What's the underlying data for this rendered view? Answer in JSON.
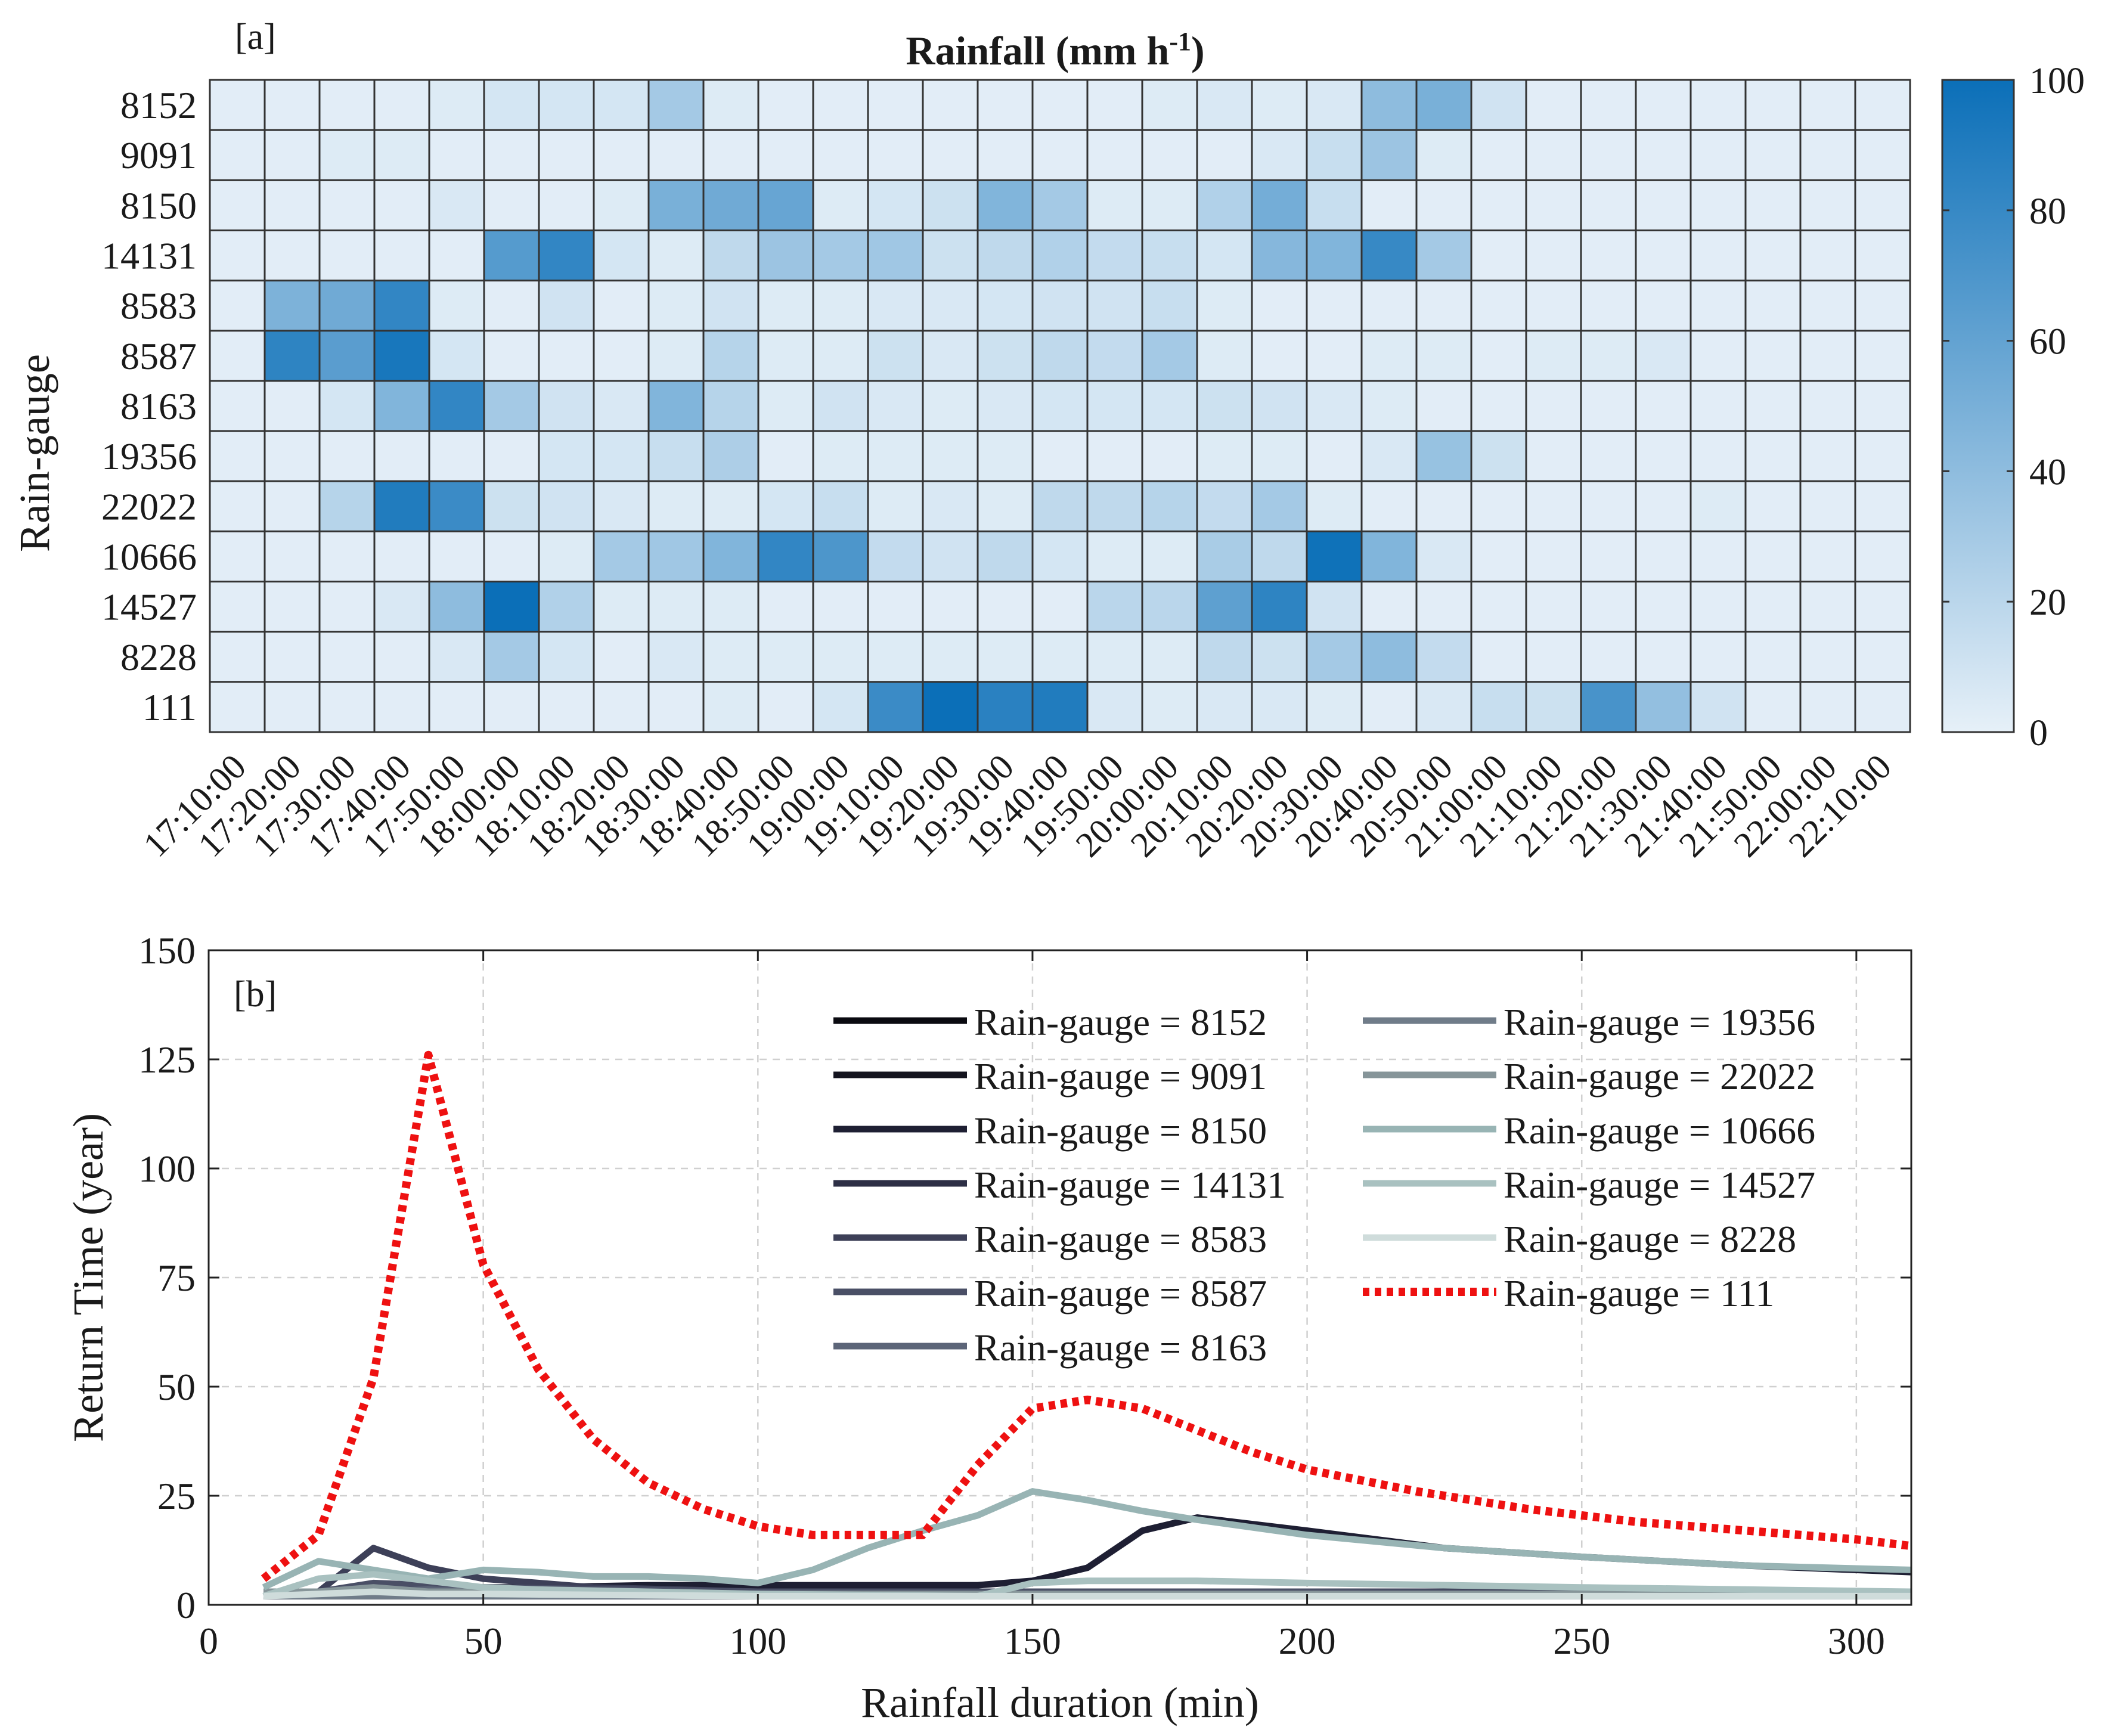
{
  "chart_data": [
    {
      "type": "heatmap",
      "panel_label": "[a]",
      "title": "Rainfall (mm h",
      "title_sup": "-1",
      "title_close": ")",
      "ylabel": "Rain-gauge",
      "rows": [
        "8152",
        "9091",
        "8150",
        "14131",
        "8583",
        "8587",
        "8163",
        "19356",
        "22022",
        "10666",
        "14527",
        "8228",
        "111"
      ],
      "columns": [
        "17:10:00",
        "17:20:00",
        "17:30:00",
        "17:40:00",
        "17:50:00",
        "18:00:00",
        "18:10:00",
        "18:20:00",
        "18:30:00",
        "18:40:00",
        "18:50:00",
        "19:00:00",
        "19:10:00",
        "19:20:00",
        "19:30:00",
        "19:40:00",
        "19:50:00",
        "20:00:00",
        "20:10:00",
        "20:20:00",
        "20:30:00",
        "20:40:00",
        "20:50:00",
        "21:00:00",
        "21:10:00",
        "21:20:00",
        "21:30:00",
        "21:40:00",
        "21:50:00",
        "22:00:00",
        "22:10:00"
      ],
      "values": [
        [
          2,
          2,
          2,
          2,
          4,
          8,
          8,
          8,
          30,
          4,
          2,
          2,
          2,
          2,
          2,
          2,
          2,
          4,
          6,
          4,
          6,
          40,
          50,
          10,
          2,
          2,
          2,
          2,
          2,
          2,
          2
        ],
        [
          2,
          2,
          4,
          4,
          2,
          2,
          2,
          2,
          2,
          2,
          2,
          2,
          2,
          2,
          2,
          2,
          2,
          2,
          2,
          6,
          14,
          34,
          4,
          2,
          2,
          2,
          2,
          2,
          2,
          2,
          2
        ],
        [
          2,
          2,
          2,
          2,
          6,
          2,
          2,
          4,
          50,
          54,
          58,
          4,
          8,
          12,
          46,
          30,
          4,
          4,
          24,
          52,
          14,
          2,
          2,
          2,
          2,
          2,
          2,
          2,
          2,
          2,
          2
        ],
        [
          2,
          2,
          2,
          2,
          2,
          66,
          82,
          8,
          4,
          18,
          34,
          30,
          32,
          12,
          18,
          24,
          16,
          14,
          8,
          44,
          46,
          80,
          30,
          2,
          2,
          2,
          2,
          2,
          2,
          2,
          2
        ],
        [
          2,
          48,
          54,
          82,
          4,
          2,
          10,
          2,
          4,
          10,
          4,
          4,
          6,
          6,
          8,
          10,
          10,
          14,
          4,
          2,
          2,
          2,
          2,
          2,
          2,
          2,
          2,
          2,
          2,
          2,
          2
        ],
        [
          2,
          84,
          64,
          94,
          8,
          2,
          2,
          2,
          4,
          22,
          4,
          4,
          12,
          6,
          12,
          18,
          16,
          30,
          4,
          2,
          2,
          4,
          4,
          2,
          4,
          4,
          6,
          2,
          2,
          2,
          2
        ],
        [
          2,
          2,
          8,
          46,
          82,
          30,
          10,
          6,
          46,
          22,
          4,
          10,
          6,
          4,
          6,
          8,
          8,
          8,
          12,
          10,
          6,
          4,
          2,
          2,
          2,
          2,
          2,
          2,
          2,
          2,
          2
        ],
        [
          2,
          2,
          2,
          2,
          2,
          2,
          8,
          8,
          14,
          26,
          2,
          4,
          4,
          4,
          4,
          2,
          2,
          2,
          4,
          4,
          2,
          6,
          36,
          12,
          2,
          2,
          2,
          2,
          2,
          2,
          2
        ],
        [
          2,
          2,
          22,
          90,
          78,
          12,
          10,
          6,
          4,
          4,
          8,
          14,
          4,
          6,
          4,
          18,
          18,
          22,
          16,
          30,
          4,
          2,
          2,
          2,
          2,
          2,
          2,
          4,
          2,
          2,
          2
        ],
        [
          2,
          2,
          2,
          2,
          2,
          2,
          4,
          30,
          32,
          46,
          82,
          70,
          16,
          10,
          18,
          8,
          4,
          4,
          28,
          18,
          98,
          46,
          6,
          2,
          2,
          2,
          2,
          2,
          2,
          2,
          2
        ],
        [
          2,
          2,
          2,
          6,
          40,
          100,
          24,
          4,
          4,
          4,
          2,
          2,
          2,
          2,
          2,
          2,
          20,
          20,
          62,
          84,
          10,
          2,
          2,
          2,
          2,
          2,
          2,
          2,
          2,
          2,
          2
        ],
        [
          2,
          2,
          2,
          2,
          6,
          30,
          8,
          2,
          6,
          4,
          4,
          4,
          4,
          4,
          4,
          4,
          4,
          4,
          18,
          12,
          30,
          40,
          16,
          2,
          2,
          2,
          2,
          2,
          2,
          2,
          2
        ],
        [
          2,
          2,
          2,
          2,
          2,
          2,
          2,
          2,
          2,
          4,
          2,
          8,
          78,
          100,
          86,
          90,
          6,
          4,
          6,
          6,
          4,
          2,
          6,
          14,
          12,
          72,
          38,
          10,
          2,
          2,
          2
        ]
      ],
      "colorbar": {
        "range": [
          0,
          100
        ],
        "ticks": [
          "0",
          "20",
          "40",
          "60",
          "80",
          "100"
        ],
        "colors": [
          "#e6f0f8",
          "#0b6fb8"
        ]
      }
    },
    {
      "type": "line",
      "panel_label": "[b]",
      "xlabel": "Rainfall duration (min)",
      "ylabel": "Return Time (year)",
      "xlim": [
        0,
        310
      ],
      "ylim": [
        0,
        150
      ],
      "xticks": [
        "0",
        "50",
        "100",
        "150",
        "200",
        "250",
        "300"
      ],
      "yticks": [
        "0",
        "25",
        "50",
        "75",
        "100",
        "125",
        "150"
      ],
      "grid": true,
      "legend_position": "top-right",
      "series": [
        {
          "name": "Rain-gauge = 8152",
          "color": "#0a0a10",
          "dash": "solid",
          "x": [
            10,
            20,
            30,
            40,
            50,
            100,
            150,
            200,
            250,
            310
          ],
          "y": [
            2,
            2,
            2,
            2,
            2,
            2,
            2,
            2,
            2,
            2
          ]
        },
        {
          "name": "Rain-gauge = 9091",
          "color": "#14141f",
          "dash": "solid",
          "x": [
            10,
            20,
            30,
            40,
            50,
            100,
            150,
            200,
            250,
            310
          ],
          "y": [
            2,
            2,
            2,
            2,
            2,
            2,
            2,
            2,
            2,
            2
          ]
        },
        {
          "name": "Rain-gauge = 8150",
          "color": "#1e1f33",
          "dash": "solid",
          "x": [
            10,
            20,
            30,
            40,
            50,
            60,
            80,
            100,
            120,
            140,
            150,
            160,
            170,
            180,
            200,
            225,
            250,
            280,
            310
          ],
          "y": [
            2,
            2.5,
            3.5,
            4,
            4,
            4,
            4.5,
            4.5,
            4.5,
            4.5,
            5.5,
            8.5,
            17,
            20,
            17,
            13,
            11,
            9,
            7.5
          ]
        },
        {
          "name": "Rain-gauge = 14131",
          "color": "#2d2f45",
          "dash": "solid",
          "x": [
            10,
            20,
            30,
            40,
            50,
            100,
            150,
            200,
            250,
            310
          ],
          "y": [
            2,
            2,
            2.5,
            3,
            3,
            3,
            3,
            3,
            3,
            2.5
          ]
        },
        {
          "name": "Rain-gauge = 8583",
          "color": "#3d4058",
          "dash": "solid",
          "x": [
            10,
            20,
            30,
            40,
            50,
            60,
            70,
            100,
            150,
            200,
            250,
            310
          ],
          "y": [
            3,
            3,
            13,
            8.5,
            6,
            5,
            4,
            3,
            3,
            3,
            3,
            2.5
          ]
        },
        {
          "name": "Rain-gauge = 8587",
          "color": "#4a4f66",
          "dash": "solid",
          "x": [
            10,
            20,
            30,
            40,
            50,
            100,
            150,
            200,
            250,
            310
          ],
          "y": [
            2,
            3,
            5,
            4.5,
            4,
            3,
            3,
            3,
            2.5,
            2
          ]
        },
        {
          "name": "Rain-gauge = 8163",
          "color": "#5c6578",
          "dash": "solid",
          "x": [
            10,
            20,
            30,
            40,
            50,
            100,
            150,
            200,
            250,
            310
          ],
          "y": [
            2,
            2.5,
            3,
            3.5,
            3,
            2.5,
            2.5,
            2.5,
            2,
            2
          ]
        },
        {
          "name": "Rain-gauge = 19356",
          "color": "#707c89",
          "dash": "solid",
          "x": [
            10,
            20,
            30,
            40,
            50,
            100,
            150,
            200,
            250,
            310
          ],
          "y": [
            2,
            2,
            2,
            2,
            2,
            2,
            2,
            2,
            2,
            2
          ]
        },
        {
          "name": "Rain-gauge = 22022",
          "color": "#869599",
          "dash": "solid",
          "x": [
            10,
            20,
            30,
            40,
            50,
            100,
            150,
            200,
            250,
            310
          ],
          "y": [
            3,
            3,
            4,
            3,
            3,
            2.5,
            2.5,
            2.5,
            2.5,
            2
          ]
        },
        {
          "name": "Rain-gauge = 10666",
          "color": "#98b4b4",
          "dash": "solid",
          "x": [
            10,
            20,
            30,
            40,
            50,
            60,
            70,
            80,
            90,
            100,
            110,
            120,
            130,
            140,
            150,
            160,
            170,
            180,
            200,
            225,
            250,
            280,
            310
          ],
          "y": [
            4,
            10,
            8,
            6,
            8,
            7.5,
            6.5,
            6.5,
            6,
            5,
            8,
            13,
            17,
            20.5,
            26,
            24,
            21.5,
            19.5,
            16,
            13,
            11,
            9,
            8
          ]
        },
        {
          "name": "Rain-gauge = 14527",
          "color": "#a9c1c0",
          "dash": "solid",
          "x": [
            10,
            20,
            30,
            40,
            50,
            60,
            80,
            100,
            140,
            150,
            160,
            180,
            200,
            250,
            310
          ],
          "y": [
            2,
            6,
            7,
            5.5,
            4,
            3.5,
            3,
            2.5,
            2,
            5,
            5.5,
            5.5,
            5,
            4,
            3
          ]
        },
        {
          "name": "Rain-gauge = 8228",
          "color": "#cfdcdb",
          "dash": "solid",
          "x": [
            10,
            20,
            30,
            40,
            50,
            100,
            150,
            200,
            250,
            310
          ],
          "y": [
            2,
            2.5,
            3,
            2.5,
            2.5,
            2,
            2,
            2,
            2,
            2
          ]
        },
        {
          "name": "Rain-gauge = 111",
          "color": "#ee1111",
          "dash": "dot",
          "x": [
            10,
            20,
            30,
            40,
            50,
            60,
            70,
            80,
            90,
            100,
            110,
            120,
            130,
            140,
            150,
            160,
            170,
            180,
            190,
            200,
            220,
            240,
            260,
            280,
            300,
            310
          ],
          "y": [
            6,
            16,
            52,
            126,
            78,
            54,
            38,
            28,
            22,
            18,
            16,
            16,
            16,
            32,
            45,
            47,
            45,
            40,
            35,
            31,
            26,
            22,
            19,
            17,
            15,
            13.5
          ]
        }
      ]
    }
  ]
}
